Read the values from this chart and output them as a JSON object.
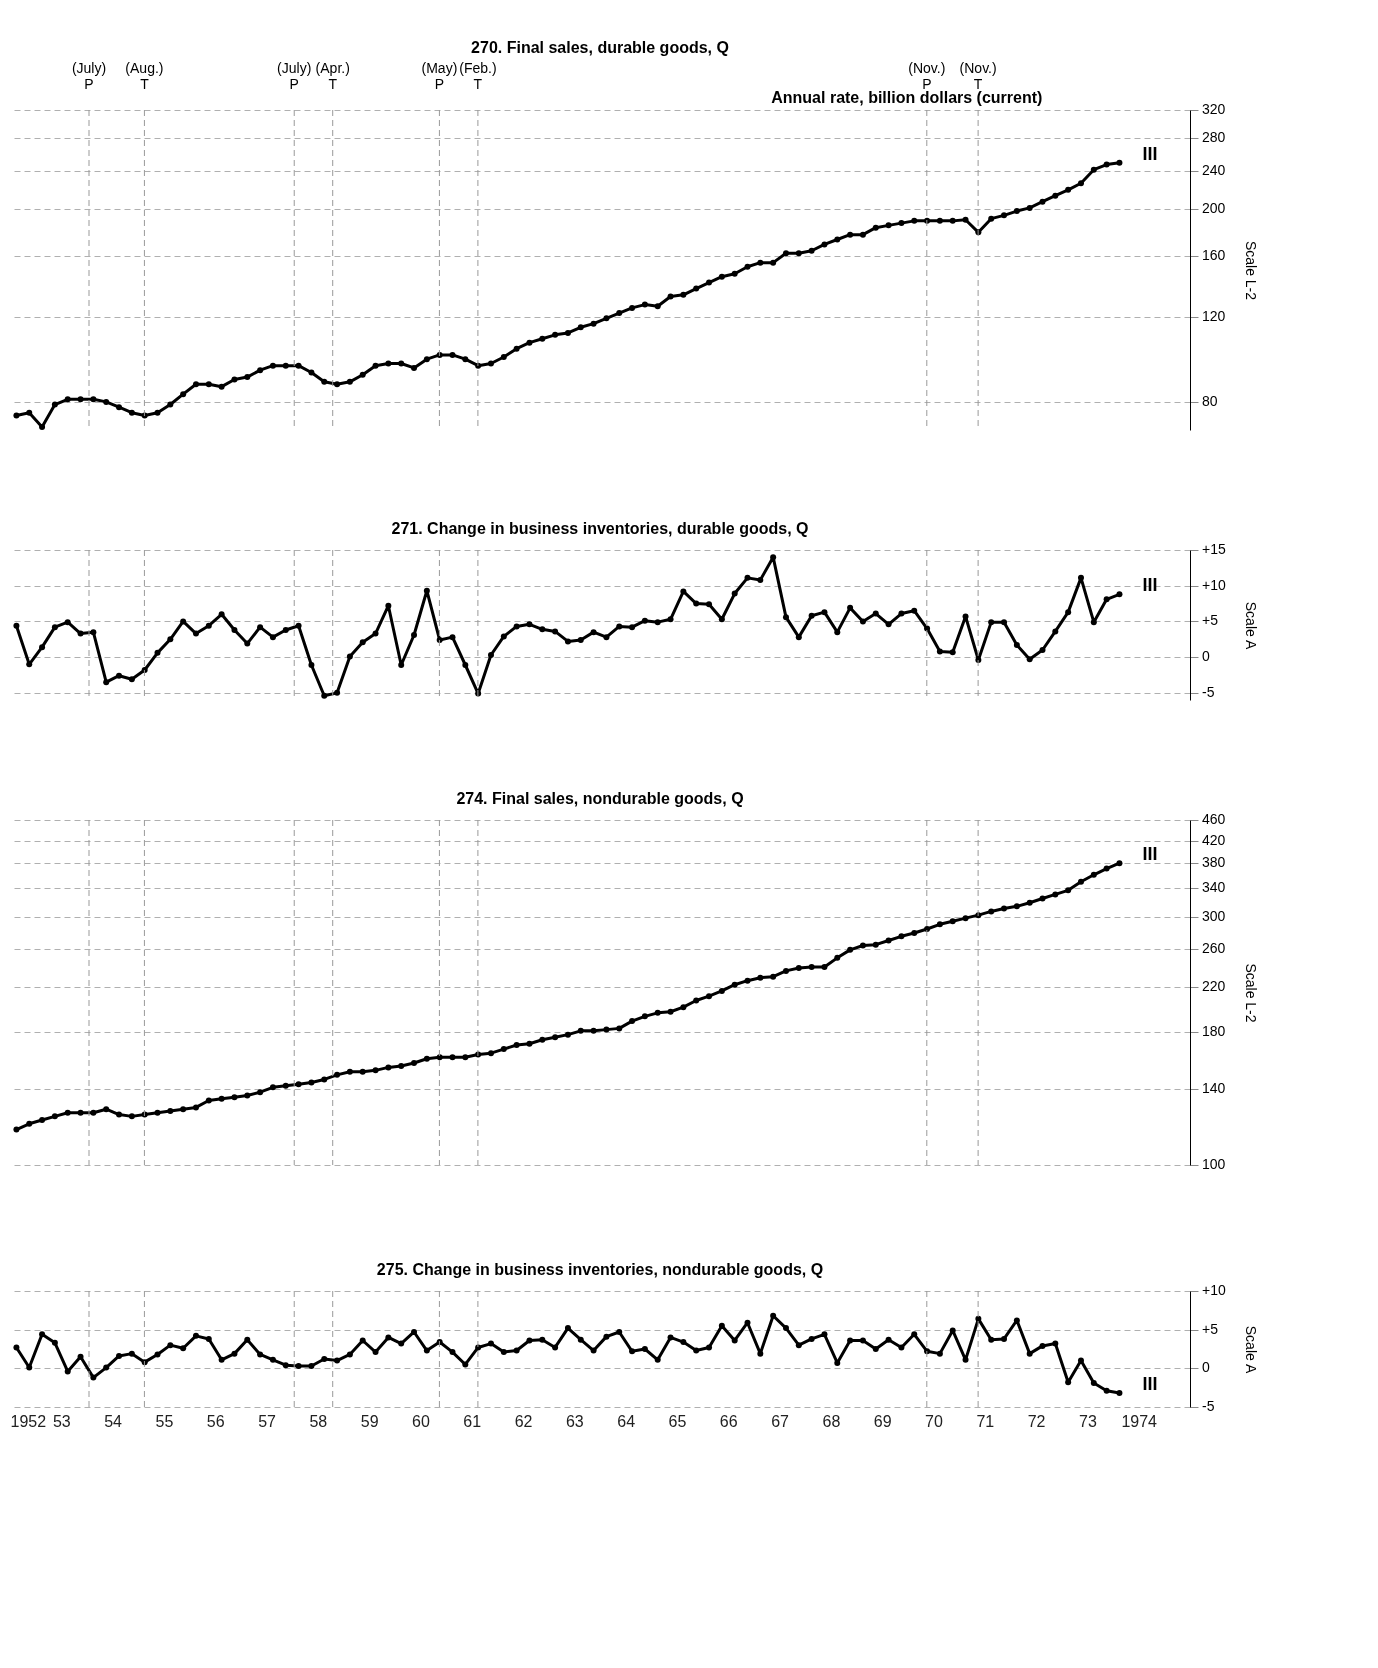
{
  "chart_data": [
    {
      "type": "line",
      "title": "270.  Final sales, durable goods, Q",
      "ylabel": "Scale L-2",
      "log": true,
      "grid": "y",
      "marker": "circle",
      "line_style": "solid",
      "tick_labels": "y",
      "color": "#000000",
      "xlim": [
        1952,
        1975
      ],
      "ylim": [
        70,
        320
      ],
      "yticks": [
        80,
        120,
        160,
        200,
        240,
        280,
        320
      ],
      "x": [
        1952.125,
        1952.375,
        1952.625,
        1952.875,
        1953.125,
        1953.375,
        1953.625,
        1953.875,
        1954.125,
        1954.375,
        1954.625,
        1954.875,
        1955.125,
        1955.375,
        1955.625,
        1955.875,
        1956.125,
        1956.375,
        1956.625,
        1956.875,
        1957.125,
        1957.375,
        1957.625,
        1957.875,
        1958.125,
        1958.375,
        1958.625,
        1958.875,
        1959.125,
        1959.375,
        1959.625,
        1959.875,
        1960.125,
        1960.375,
        1960.625,
        1960.875,
        1961.125,
        1961.375,
        1961.625,
        1961.875,
        1962.125,
        1962.375,
        1962.625,
        1962.875,
        1963.125,
        1963.375,
        1963.625,
        1963.875,
        1964.125,
        1964.375,
        1964.625,
        1964.875,
        1965.125,
        1965.375,
        1965.625,
        1965.875,
        1966.125,
        1966.375,
        1966.625,
        1966.875,
        1967.125,
        1967.375,
        1967.625,
        1967.875,
        1968.125,
        1968.375,
        1968.625,
        1968.875,
        1969.125,
        1969.375,
        1969.625,
        1969.875,
        1970.125,
        1970.375,
        1970.625,
        1970.875,
        1971.125,
        1971.375,
        1971.625,
        1971.875,
        1972.125,
        1972.375,
        1972.625,
        1972.875,
        1973.125,
        1973.375,
        1973.625
      ],
      "values": [
        75,
        76,
        71,
        79,
        81,
        81,
        81,
        80,
        78,
        76,
        75,
        76,
        79,
        83,
        87,
        87,
        86,
        89,
        90,
        93,
        95,
        95,
        95,
        92,
        88,
        87,
        88,
        91,
        95,
        96,
        96,
        94,
        98,
        100,
        100,
        98,
        95,
        96,
        99,
        103,
        106,
        108,
        110,
        111,
        114,
        116,
        119,
        122,
        125,
        127,
        126,
        132,
        133,
        137,
        141,
        145,
        147,
        152,
        155,
        155,
        162,
        162,
        164,
        169,
        173,
        177,
        177,
        183,
        185,
        187,
        189,
        189,
        189,
        189,
        190,
        179,
        191,
        194,
        198,
        201,
        207,
        213,
        219,
        226,
        241,
        247,
        249
      ],
      "ref_lines": [
        {
          "axis": "x",
          "value": 1953.54,
          "label": "(July) P",
          "color": "#999999",
          "line_style": "dashed"
        },
        {
          "axis": "x",
          "value": 1954.62,
          "label": "(Aug.) T",
          "color": "#999999",
          "line_style": "dashed"
        },
        {
          "axis": "x",
          "value": 1957.54,
          "label": "(July) P",
          "color": "#999999",
          "line_style": "dashed"
        },
        {
          "axis": "x",
          "value": 1958.29,
          "label": "(Apr.) T",
          "color": "#999999",
          "line_style": "dashed"
        },
        {
          "axis": "x",
          "value": 1960.37,
          "label": "(May) P",
          "color": "#999999",
          "line_style": "dashed"
        },
        {
          "axis": "x",
          "value": 1961.12,
          "label": "(Feb.) T",
          "color": "#999999",
          "line_style": "dashed"
        },
        {
          "axis": "x",
          "value": 1969.87,
          "label": "(Nov.) P",
          "color": "#999999",
          "line_style": "dashed"
        },
        {
          "axis": "x",
          "value": 1970.87,
          "label": "(Nov.) T",
          "color": "#999999",
          "line_style": "dashed"
        }
      ],
      "annotations": [
        "Annual rate, billion dollars (current)",
        "III"
      ]
    },
    {
      "type": "line",
      "title": "271.  Change in business inventories, durable goods, Q",
      "ylabel": "Scale A",
      "grid": "y",
      "marker": "circle",
      "line_style": "solid",
      "tick_labels": "y",
      "color": "#000000",
      "xlim": [
        1952,
        1975
      ],
      "ylim": [
        -6,
        15
      ],
      "yticks": [
        {
          "value": 15,
          "label": "+15"
        },
        {
          "value": 10,
          "label": "+10"
        },
        {
          "value": 5,
          "label": "+5"
        },
        0,
        -5
      ],
      "x": [
        1952.125,
        1952.375,
        1952.625,
        1952.875,
        1953.125,
        1953.375,
        1953.625,
        1953.875,
        1954.125,
        1954.375,
        1954.625,
        1954.875,
        1955.125,
        1955.375,
        1955.625,
        1955.875,
        1956.125,
        1956.375,
        1956.625,
        1956.875,
        1957.125,
        1957.375,
        1957.625,
        1957.875,
        1958.125,
        1958.375,
        1958.625,
        1958.875,
        1959.125,
        1959.375,
        1959.625,
        1959.875,
        1960.125,
        1960.375,
        1960.625,
        1960.875,
        1961.125,
        1961.375,
        1961.625,
        1961.875,
        1962.125,
        1962.375,
        1962.625,
        1962.875,
        1963.125,
        1963.375,
        1963.625,
        1963.875,
        1964.125,
        1964.375,
        1964.625,
        1964.875,
        1965.125,
        1965.375,
        1965.625,
        1965.875,
        1966.125,
        1966.375,
        1966.625,
        1966.875,
        1967.125,
        1967.375,
        1967.625,
        1967.875,
        1968.125,
        1968.375,
        1968.625,
        1968.875,
        1969.125,
        1969.375,
        1969.625,
        1969.875,
        1970.125,
        1970.375,
        1970.625,
        1970.875,
        1971.125,
        1971.375,
        1971.625,
        1971.875,
        1972.125,
        1972.375,
        1972.625,
        1972.875,
        1973.125,
        1973.375,
        1973.625
      ],
      "values": [
        4.4,
        -1,
        1.4,
        4.2,
        4.9,
        3.3,
        3.5,
        -3.5,
        -2.6,
        -3.1,
        -1.8,
        0.6,
        2.5,
        5,
        3.3,
        4.4,
        6,
        3.8,
        1.9,
        4.2,
        2.8,
        3.8,
        4.4,
        -1.1,
        -5.4,
        -5,
        0.1,
        2.1,
        3.3,
        7.2,
        -1.1,
        3.1,
        9.3,
        2.4,
        2.8,
        -1.1,
        -5.1,
        0.3,
        2.9,
        4.3,
        4.6,
        3.9,
        3.6,
        2.2,
        2.4,
        3.5,
        2.8,
        4.3,
        4.2,
        5.1,
        4.9,
        5.3,
        9.2,
        7.5,
        7.4,
        5.3,
        8.9,
        11.1,
        10.8,
        14,
        5.6,
        2.8,
        5.8,
        6.3,
        3.5,
        6.9,
        5,
        6.1,
        4.6,
        6.1,
        6.5,
        4,
        0.8,
        0.7,
        5.7,
        -0.4,
        4.9,
        4.9,
        1.7,
        -0.3,
        1,
        3.6,
        6.3,
        11.1,
        4.9,
        8.1,
        8.8
      ],
      "ref_lines": [
        {
          "axis": "x",
          "value": 1953.54,
          "color": "#999999",
          "line_style": "dashed"
        },
        {
          "axis": "x",
          "value": 1954.62,
          "color": "#999999",
          "line_style": "dashed"
        },
        {
          "axis": "x",
          "value": 1957.54,
          "color": "#999999",
          "line_style": "dashed"
        },
        {
          "axis": "x",
          "value": 1958.29,
          "color": "#999999",
          "line_style": "dashed"
        },
        {
          "axis": "x",
          "value": 1960.37,
          "color": "#999999",
          "line_style": "dashed"
        },
        {
          "axis": "x",
          "value": 1961.12,
          "color": "#999999",
          "line_style": "dashed"
        },
        {
          "axis": "x",
          "value": 1969.87,
          "color": "#999999",
          "line_style": "dashed"
        },
        {
          "axis": "x",
          "value": 1970.87,
          "color": "#999999",
          "line_style": "dashed"
        }
      ],
      "annotations": [
        "III"
      ]
    },
    {
      "type": "line",
      "title": "274.  Final sales, nondurable goods, Q",
      "ylabel": "Scale L-2",
      "log": true,
      "grid": "y",
      "marker": "circle",
      "line_style": "solid",
      "tick_labels": "y",
      "color": "#000000",
      "xlim": [
        1952,
        1975
      ],
      "ylim": [
        100,
        460
      ],
      "yticks": [
        100,
        140,
        180,
        220,
        260,
        300,
        340,
        380,
        420,
        460
      ],
      "x": [
        1952.125,
        1952.375,
        1952.625,
        1952.875,
        1953.125,
        1953.375,
        1953.625,
        1953.875,
        1954.125,
        1954.375,
        1954.625,
        1954.875,
        1955.125,
        1955.375,
        1955.625,
        1955.875,
        1956.125,
        1956.375,
        1956.625,
        1956.875,
        1957.125,
        1957.375,
        1957.625,
        1957.875,
        1958.125,
        1958.375,
        1958.625,
        1958.875,
        1959.125,
        1959.375,
        1959.625,
        1959.875,
        1960.125,
        1960.375,
        1960.625,
        1960.875,
        1961.125,
        1961.375,
        1961.625,
        1961.875,
        1962.125,
        1962.375,
        1962.625,
        1962.875,
        1963.125,
        1963.375,
        1963.625,
        1963.875,
        1964.125,
        1964.375,
        1964.625,
        1964.875,
        1965.125,
        1965.375,
        1965.625,
        1965.875,
        1966.125,
        1966.375,
        1966.625,
        1966.875,
        1967.125,
        1967.375,
        1967.625,
        1967.875,
        1968.125,
        1968.375,
        1968.625,
        1968.875,
        1969.125,
        1969.375,
        1969.625,
        1969.875,
        1970.125,
        1970.375,
        1970.625,
        1970.875,
        1971.125,
        1971.375,
        1971.625,
        1971.875,
        1972.125,
        1972.375,
        1972.625,
        1972.875,
        1973.125,
        1973.375,
        1973.625
      ],
      "values": [
        117,
        120,
        122,
        124,
        126,
        126,
        126,
        128,
        125,
        124,
        125,
        126,
        127,
        128,
        129,
        133,
        134,
        135,
        136,
        138,
        141,
        142,
        143,
        144,
        146,
        149,
        151,
        151,
        152,
        154,
        155,
        157,
        160,
        161,
        161,
        161,
        163,
        164,
        167,
        170,
        171,
        174,
        176,
        178,
        181,
        181,
        182,
        183,
        189,
        193,
        196,
        197,
        201,
        207,
        211,
        216,
        222,
        226,
        229,
        230,
        236,
        239,
        240,
        240,
        250,
        259,
        264,
        265,
        270,
        275,
        279,
        284,
        290,
        294,
        298,
        302,
        307,
        311,
        314,
        319,
        325,
        331,
        337,
        350,
        361,
        371,
        380
      ],
      "ref_lines": [
        {
          "axis": "x",
          "value": 1953.54,
          "color": "#999999",
          "line_style": "dashed"
        },
        {
          "axis": "x",
          "value": 1954.62,
          "color": "#999999",
          "line_style": "dashed"
        },
        {
          "axis": "x",
          "value": 1957.54,
          "color": "#999999",
          "line_style": "dashed"
        },
        {
          "axis": "x",
          "value": 1958.29,
          "color": "#999999",
          "line_style": "dashed"
        },
        {
          "axis": "x",
          "value": 1960.37,
          "color": "#999999",
          "line_style": "dashed"
        },
        {
          "axis": "x",
          "value": 1961.12,
          "color": "#999999",
          "line_style": "dashed"
        },
        {
          "axis": "x",
          "value": 1969.87,
          "color": "#999999",
          "line_style": "dashed"
        },
        {
          "axis": "x",
          "value": 1970.87,
          "color": "#999999",
          "line_style": "dashed"
        }
      ],
      "annotations": [
        "III"
      ]
    },
    {
      "type": "line",
      "title": "275.  Change in business inventories, nondurable goods, Q",
      "ylabel": "Scale A",
      "grid": "y",
      "marker": "circle",
      "line_style": "solid",
      "color": "#000000",
      "xlim": [
        1952,
        1975
      ],
      "ylim": [
        -5,
        10
      ],
      "yticks": [
        {
          "value": 10,
          "label": "+10"
        },
        {
          "value": 5,
          "label": "+5"
        },
        0,
        -5
      ],
      "xticks": [
        1952,
        {
          "value": 1953,
          "label": "53"
        },
        {
          "value": 1954,
          "label": "54"
        },
        {
          "value": 1955,
          "label": "55"
        },
        {
          "value": 1956,
          "label": "56"
        },
        {
          "value": 1957,
          "label": "57"
        },
        {
          "value": 1958,
          "label": "58"
        },
        {
          "value": 1959,
          "label": "59"
        },
        {
          "value": 1960,
          "label": "60"
        },
        {
          "value": 1961,
          "label": "61"
        },
        {
          "value": 1962,
          "label": "62"
        },
        {
          "value": 1963,
          "label": "63"
        },
        {
          "value": 1964,
          "label": "64"
        },
        {
          "value": 1965,
          "label": "65"
        },
        {
          "value": 1966,
          "label": "66"
        },
        {
          "value": 1967,
          "label": "67"
        },
        {
          "value": 1968,
          "label": "68"
        },
        {
          "value": 1969,
          "label": "69"
        },
        {
          "value": 1970,
          "label": "70"
        },
        {
          "value": 1971,
          "label": "71"
        },
        {
          "value": 1972,
          "label": "72"
        },
        {
          "value": 1973,
          "label": "73"
        },
        1974
      ],
      "x": [
        1952.125,
        1952.375,
        1952.625,
        1952.875,
        1953.125,
        1953.375,
        1953.625,
        1953.875,
        1954.125,
        1954.375,
        1954.625,
        1954.875,
        1955.125,
        1955.375,
        1955.625,
        1955.875,
        1956.125,
        1956.375,
        1956.625,
        1956.875,
        1957.125,
        1957.375,
        1957.625,
        1957.875,
        1958.125,
        1958.375,
        1958.625,
        1958.875,
        1959.125,
        1959.375,
        1959.625,
        1959.875,
        1960.125,
        1960.375,
        1960.625,
        1960.875,
        1961.125,
        1961.375,
        1961.625,
        1961.875,
        1962.125,
        1962.375,
        1962.625,
        1962.875,
        1963.125,
        1963.375,
        1963.625,
        1963.875,
        1964.125,
        1964.375,
        1964.625,
        1964.875,
        1965.125,
        1965.375,
        1965.625,
        1965.875,
        1966.125,
        1966.375,
        1966.625,
        1966.875,
        1967.125,
        1967.375,
        1967.625,
        1967.875,
        1968.125,
        1968.375,
        1968.625,
        1968.875,
        1969.125,
        1969.375,
        1969.625,
        1969.875,
        1970.125,
        1970.375,
        1970.625,
        1970.875,
        1971.125,
        1971.375,
        1971.625,
        1971.875,
        1972.125,
        1972.375,
        1972.625,
        1972.875,
        1973.125,
        1973.375,
        1973.625
      ],
      "values": [
        2.7,
        0.1,
        4.4,
        3.3,
        -0.4,
        1.5,
        -1.2,
        0.1,
        1.6,
        1.9,
        0.8,
        1.8,
        3,
        2.6,
        4.2,
        3.8,
        1.1,
        1.9,
        3.7,
        1.8,
        1.1,
        0.4,
        0.3,
        0.3,
        1.2,
        1,
        1.8,
        3.6,
        2.1,
        4,
        3.2,
        4.7,
        2.3,
        3.4,
        2.1,
        0.5,
        2.7,
        3.2,
        2.1,
        2.3,
        3.6,
        3.7,
        2.7,
        5.2,
        3.7,
        2.3,
        4.1,
        4.7,
        2.2,
        2.5,
        1.1,
        4,
        3.4,
        2.3,
        2.7,
        5.5,
        3.6,
        5.9,
        1.9,
        6.8,
        5.2,
        3,
        3.8,
        4.4,
        0.7,
        3.6,
        3.6,
        2.5,
        3.7,
        2.7,
        4.4,
        2.2,
        1.9,
        4.9,
        1.1,
        6.4,
        3.7,
        3.8,
        6.2,
        1.9,
        2.9,
        3.2,
        -1.8,
        1,
        -1.9,
        -2.9,
        -3.2
      ],
      "ref_lines": [
        {
          "axis": "x",
          "value": 1953.54,
          "color": "#999999",
          "line_style": "dashed"
        },
        {
          "axis": "x",
          "value": 1954.62,
          "color": "#999999",
          "line_style": "dashed"
        },
        {
          "axis": "x",
          "value": 1957.54,
          "color": "#999999",
          "line_style": "dashed"
        },
        {
          "axis": "x",
          "value": 1958.29,
          "color": "#999999",
          "line_style": "dashed"
        },
        {
          "axis": "x",
          "value": 1960.37,
          "color": "#999999",
          "line_style": "dashed"
        },
        {
          "axis": "x",
          "value": 1961.12,
          "color": "#999999",
          "line_style": "dashed"
        },
        {
          "axis": "x",
          "value": 1969.87,
          "color": "#999999",
          "line_style": "dashed"
        },
        {
          "axis": "x",
          "value": 1970.87,
          "color": "#999999",
          "line_style": "dashed"
        }
      ],
      "annotations": [
        "III"
      ]
    }
  ]
}
